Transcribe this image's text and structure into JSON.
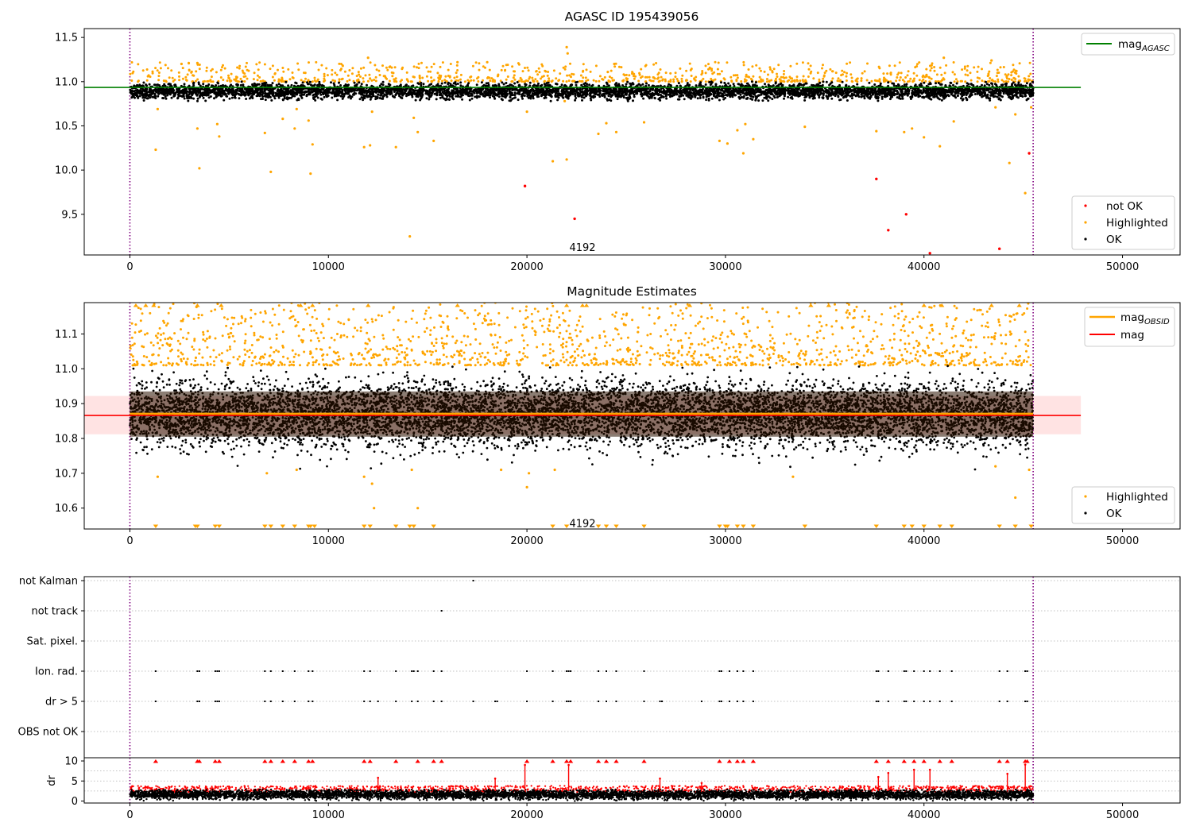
{
  "figure": {
    "bg": "#ffffff"
  },
  "colors": {
    "ok": "#000000",
    "highlighted": "#ffa500",
    "not_ok": "#ff0000",
    "mag_agasc": "#008000",
    "mag_obsid": "#ffa500",
    "mag": "#ff0000",
    "band": "#ffcccc",
    "obs_boundary": "#800080",
    "dr_ok": "#000000",
    "dr_flag": "#ff0000"
  },
  "chart_data": [
    {
      "id": "agasc",
      "type": "scatter",
      "title": "AGASC ID 195439056",
      "xlim": [
        -2300,
        52900
      ],
      "ylim": [
        9.04,
        11.6
      ],
      "xticks": [
        0,
        10000,
        20000,
        30000,
        40000,
        50000
      ],
      "yticks": [
        9.5,
        10.0,
        10.5,
        11.0,
        11.5
      ],
      "xticklabels": [
        "0",
        "10000",
        "20000",
        "30000",
        "40000",
        "50000"
      ],
      "yticklabels": [
        "9.5",
        "10.0",
        "10.5",
        "11.0",
        "11.5"
      ],
      "obs_boundaries": [
        0,
        45500
      ],
      "annotation": {
        "text": "4192",
        "x": 22800,
        "y": 9.12
      },
      "reference_lines": [
        {
          "name": "mag_AGASC",
          "y": 10.935,
          "x": [
            -2300,
            47900
          ]
        }
      ],
      "legend_top": [
        "mag_AGASC"
      ],
      "legend_bottom": [
        "not OK",
        "Highlighted",
        "OK"
      ],
      "ok_band": {
        "x": [
          0,
          45500
        ],
        "center": 10.89,
        "spread": 0.11
      },
      "highlight_band": {
        "low": 11.0,
        "high": 11.22
      },
      "outliers_highlighted": [
        [
          1300,
          10.23
        ],
        [
          1400,
          10.69
        ],
        [
          3400,
          10.47
        ],
        [
          3500,
          10.02
        ],
        [
          4400,
          10.52
        ],
        [
          4500,
          10.38
        ],
        [
          6800,
          10.42
        ],
        [
          7100,
          9.98
        ],
        [
          7700,
          10.58
        ],
        [
          8300,
          10.47
        ],
        [
          8400,
          10.69
        ],
        [
          9000,
          10.56
        ],
        [
          9100,
          9.96
        ],
        [
          9200,
          10.29
        ],
        [
          11800,
          10.26
        ],
        [
          12100,
          10.28
        ],
        [
          12200,
          10.66
        ],
        [
          13400,
          10.26
        ],
        [
          14100,
          9.25
        ],
        [
          14300,
          10.59
        ],
        [
          14500,
          10.43
        ],
        [
          15300,
          10.33
        ],
        [
          20000,
          10.66
        ],
        [
          21300,
          10.1
        ],
        [
          21900,
          10.78
        ],
        [
          22000,
          10.12
        ],
        [
          23600,
          10.41
        ],
        [
          24000,
          10.53
        ],
        [
          24500,
          10.43
        ],
        [
          25900,
          10.54
        ],
        [
          29700,
          10.33
        ],
        [
          30100,
          10.3
        ],
        [
          30600,
          10.45
        ],
        [
          30900,
          10.19
        ],
        [
          31000,
          10.52
        ],
        [
          31400,
          10.35
        ],
        [
          34000,
          10.49
        ],
        [
          37600,
          10.44
        ],
        [
          39000,
          10.43
        ],
        [
          39400,
          10.47
        ],
        [
          40000,
          10.37
        ],
        [
          40800,
          10.27
        ],
        [
          41500,
          10.55
        ],
        [
          43600,
          10.71
        ],
        [
          44300,
          10.08
        ],
        [
          44600,
          10.63
        ],
        [
          45100,
          9.74
        ],
        [
          45400,
          10.71
        ]
      ],
      "outliers_not_ok": [
        [
          19900,
          9.82
        ],
        [
          22400,
          9.45
        ],
        [
          37600,
          9.9
        ],
        [
          38200,
          9.32
        ],
        [
          39100,
          9.5
        ],
        [
          40300,
          9.06
        ],
        [
          43800,
          9.11
        ],
        [
          45300,
          10.19
        ]
      ],
      "spikes_high": [
        [
          12000,
          11.27
        ],
        [
          22000,
          11.39
        ],
        [
          22050,
          11.32
        ],
        [
          41000,
          11.27
        ],
        [
          43400,
          11.24
        ],
        [
          18000,
          11.22
        ],
        [
          16500,
          11.22
        ],
        [
          24400,
          11.2
        ],
        [
          2600,
          11.2
        ],
        [
          3400,
          11.21
        ]
      ]
    },
    {
      "id": "estimates",
      "type": "scatter",
      "title": "Magnitude Estimates",
      "xlim": [
        -2300,
        52900
      ],
      "ylim": [
        10.54,
        11.19
      ],
      "xticks": [
        0,
        10000,
        20000,
        30000,
        40000,
        50000
      ],
      "yticks": [
        10.6,
        10.7,
        10.8,
        10.9,
        11.0,
        11.1
      ],
      "xticklabels": [
        "0",
        "10000",
        "20000",
        "30000",
        "40000",
        "50000"
      ],
      "yticklabels": [
        "10.6",
        "10.7",
        "10.8",
        "10.9",
        "11.0",
        "11.1"
      ],
      "obs_boundaries": [
        0,
        45500
      ],
      "annotation": {
        "text": "4192",
        "x": 22800,
        "y": 10.555
      },
      "reference_lines": [
        {
          "name": "mag_OBSID",
          "y": 10.871,
          "x": [
            0,
            45500
          ]
        },
        {
          "name": "mag",
          "y": 10.866,
          "x": [
            -2300,
            47900
          ]
        }
      ],
      "band": {
        "x": [
          -2300,
          47900
        ],
        "low": 10.812,
        "high": 10.922
      },
      "legend_top": [
        "mag_OBSID",
        "mag"
      ],
      "legend_bottom": [
        "Highlighted",
        "OK"
      ],
      "ok_band": {
        "x": [
          0,
          45500
        ],
        "center": 10.87,
        "spread": 0.15
      },
      "highlight_band": {
        "low": 11.01,
        "high": 11.19
      },
      "clip_markers_top_x": [
        300,
        800,
        1200,
        3400,
        4600,
        8600,
        9200,
        12000,
        16500,
        22000,
        22800,
        23000,
        28200,
        34300,
        35200,
        40000,
        40900,
        43400,
        44800
      ],
      "clip_markers_bottom_x": [
        1300,
        3300,
        3400,
        4300,
        4500,
        6800,
        7100,
        7700,
        8300,
        9000,
        9100,
        9300,
        11800,
        12100,
        13400,
        14100,
        14300,
        15300,
        21300,
        22000,
        23600,
        24000,
        24500,
        25900,
        29700,
        30000,
        30100,
        30600,
        30900,
        31400,
        34000,
        37600,
        39000,
        39400,
        40000,
        40800,
        41400,
        43800,
        44600,
        45400
      ],
      "outliers_highlighted": [
        [
          1400,
          10.69
        ],
        [
          6900,
          10.7
        ],
        [
          8400,
          10.71
        ],
        [
          11800,
          10.69
        ],
        [
          12200,
          10.67
        ],
        [
          12300,
          10.6
        ],
        [
          14500,
          10.6
        ],
        [
          14200,
          10.71
        ],
        [
          18700,
          10.71
        ],
        [
          20000,
          10.66
        ],
        [
          20100,
          10.7
        ],
        [
          21400,
          10.71
        ],
        [
          33400,
          10.69
        ],
        [
          43600,
          10.72
        ],
        [
          44600,
          10.63
        ],
        [
          45300,
          10.71
        ]
      ]
    },
    {
      "id": "flags",
      "type": "scatter",
      "title": "",
      "xlim": [
        -2300,
        52900
      ],
      "ylim": [
        -0.5,
        5.5
      ],
      "xticks": [
        0,
        10000,
        20000,
        30000,
        40000,
        50000
      ],
      "xticklabels": [
        "0",
        "10000",
        "20000",
        "30000",
        "40000",
        "50000"
      ],
      "obs_boundaries": [
        0,
        45500
      ],
      "categories": [
        "not Kalman",
        "not track",
        "Sat. pixel.",
        "Ion. rad.",
        "dr > 5",
        "OBS not OK"
      ],
      "flag_points": {
        "not Kalman": [
          17300
        ],
        "not track": [
          15700
        ],
        "Sat. pixel.": [],
        "Ion. rad.": [
          1300,
          3400,
          3500,
          4300,
          4400,
          4500,
          6800,
          7100,
          7700,
          8300,
          9000,
          9200,
          11800,
          12100,
          13400,
          14200,
          14300,
          14500,
          15300,
          15700,
          20000,
          21300,
          22000,
          22100,
          22200,
          23600,
          24000,
          24500,
          25900,
          29700,
          29800,
          30200,
          30600,
          30900,
          31400,
          37600,
          37700,
          38200,
          39000,
          39100,
          39500,
          40000,
          40300,
          40800,
          41400,
          43800,
          44200,
          45100,
          45200
        ],
        "dr > 5": [
          1300,
          3400,
          3500,
          4300,
          4400,
          4500,
          6800,
          7100,
          7700,
          8300,
          9000,
          9200,
          11800,
          12100,
          12500,
          13400,
          14200,
          14500,
          15300,
          15700,
          17300,
          18400,
          18500,
          20000,
          21300,
          22000,
          22100,
          22200,
          23600,
          24000,
          24500,
          25900,
          26700,
          26800,
          28800,
          29700,
          29800,
          30200,
          30600,
          30900,
          31400,
          37600,
          37700,
          38200,
          39000,
          39100,
          39500,
          40000,
          40300,
          40800,
          41400,
          43800,
          44200,
          45100,
          45200
        ],
        "OBS not OK": []
      }
    },
    {
      "id": "dr",
      "type": "scatter",
      "title": "",
      "ylabel": "dr",
      "xlim": [
        -2300,
        52900
      ],
      "ylim": [
        -0.5,
        10.8
      ],
      "yticks": [
        0,
        5,
        10
      ],
      "yticklabels": [
        "0",
        "5",
        "10"
      ],
      "xticks": [
        0,
        10000,
        20000,
        30000,
        40000,
        50000
      ],
      "xticklabels": [
        "0",
        "10000",
        "20000",
        "30000",
        "40000",
        "50000"
      ],
      "obs_boundaries": [
        0,
        45500
      ],
      "ok_band": {
        "x": [
          0,
          45500
        ],
        "center": 1.6,
        "spread": 1.2
      },
      "clip_markers_top_x": [
        1300,
        3400,
        3500,
        4300,
        4500,
        6800,
        7100,
        7700,
        8300,
        9000,
        9200,
        11800,
        12100,
        13400,
        14500,
        15300,
        15700,
        20000,
        21300,
        22000,
        22200,
        23600,
        24000,
        24500,
        25900,
        29700,
        30200,
        30600,
        30900,
        31400,
        37600,
        38200,
        39000,
        39500,
        40000,
        40800,
        41400,
        43800,
        44200,
        45100,
        45200
      ],
      "red_spikes": [
        [
          12500,
          5.8
        ],
        [
          18400,
          5.6
        ],
        [
          26700,
          5.6
        ],
        [
          28800,
          4.5
        ],
        [
          38200,
          7.0
        ],
        [
          39500,
          7.8
        ],
        [
          40300,
          7.8
        ],
        [
          44200,
          6.8
        ],
        [
          19900,
          9.0
        ],
        [
          37700,
          6.0
        ],
        [
          22100,
          9.0
        ],
        [
          45100,
          9.1
        ]
      ]
    }
  ]
}
